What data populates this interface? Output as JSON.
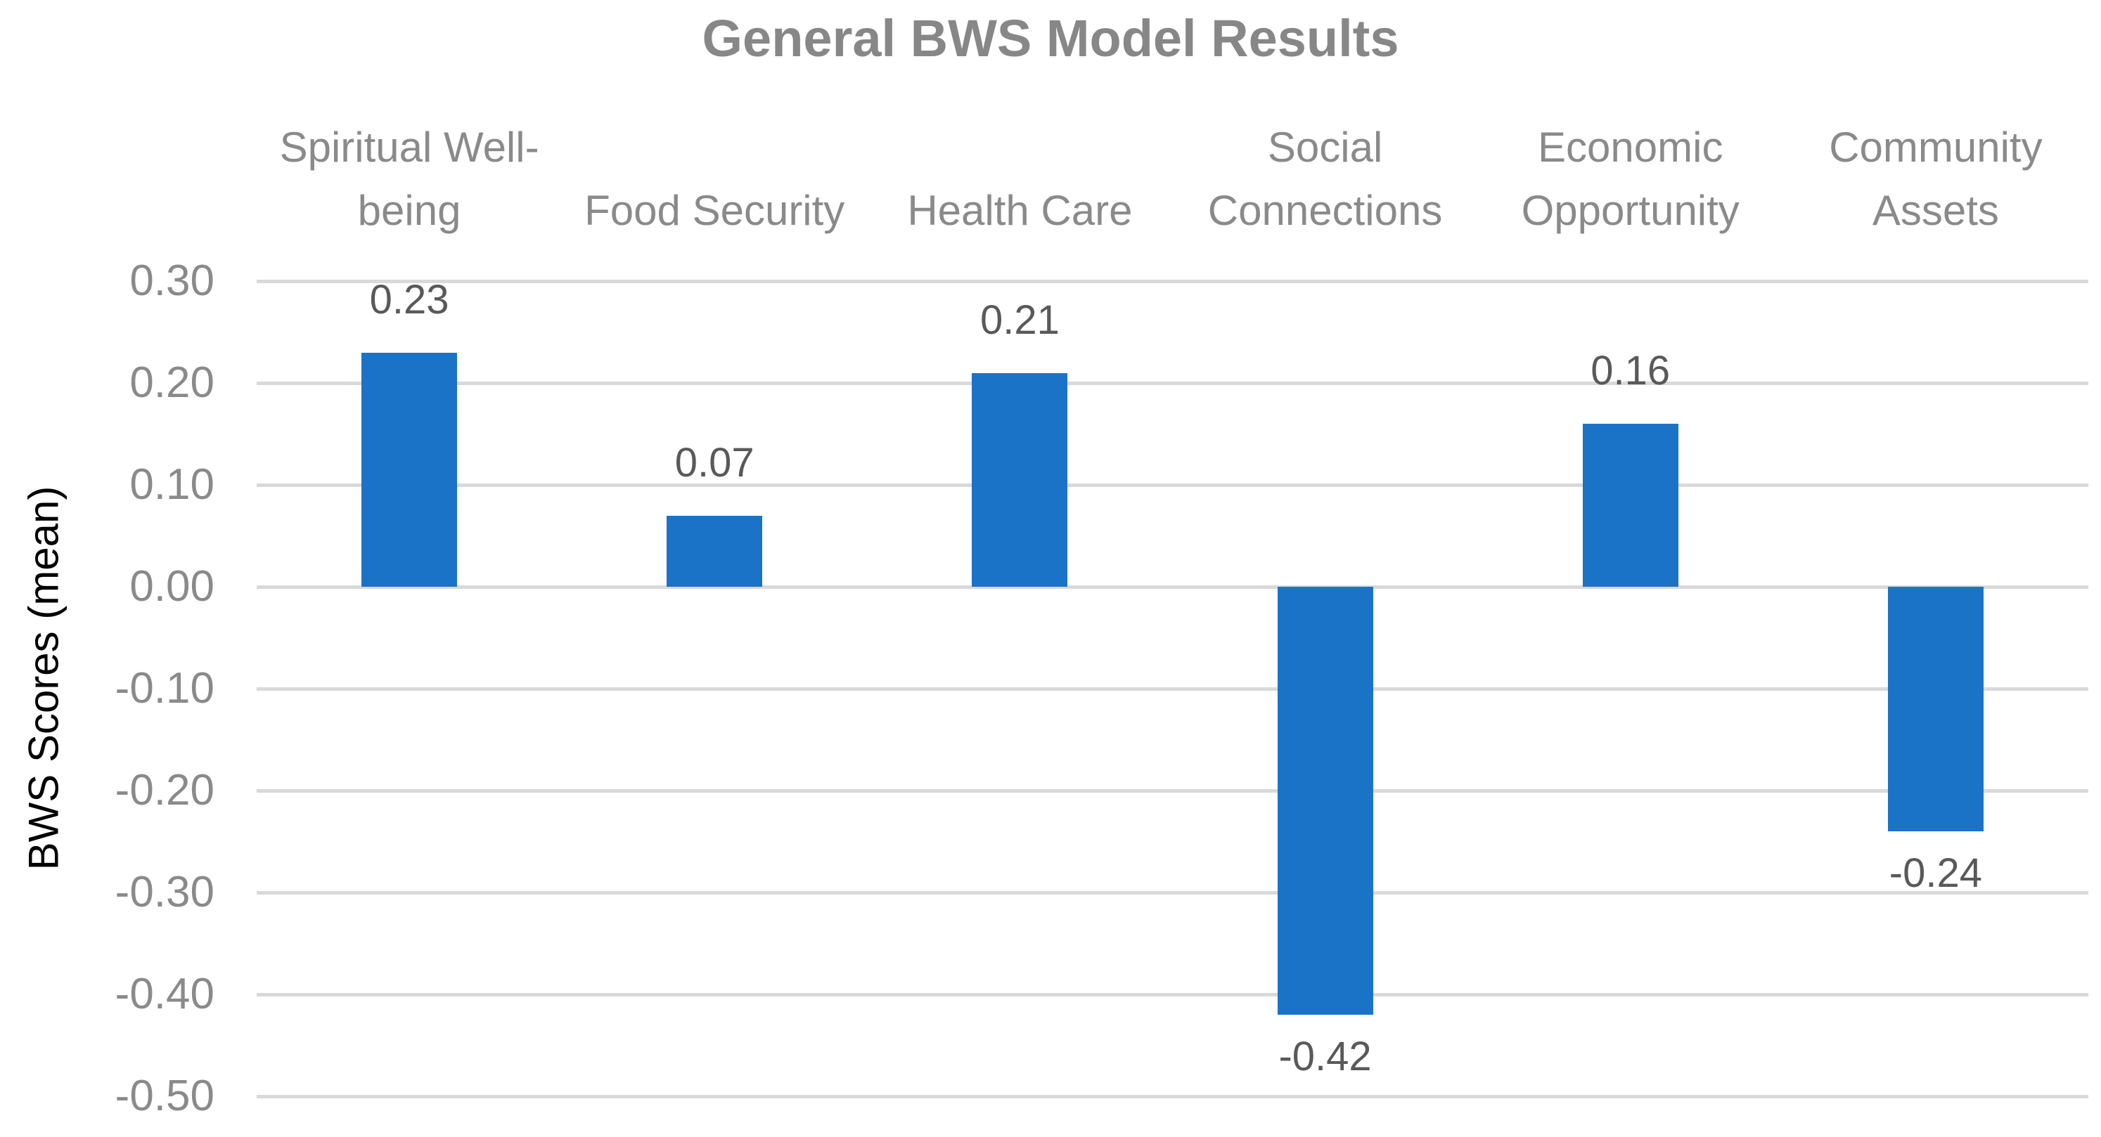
{
  "chart": {
    "colors": {
      "background": "#FFFFFF",
      "bar": "#1B73C8",
      "gridline": "#D9D9D9",
      "title_text": "#878787",
      "tick_text": "#8A8A8A",
      "category_text": "#8A8A8A",
      "value_label_text": "#595959",
      "axis_title_text": "#000000"
    }
  },
  "chart_data": {
    "type": "bar",
    "title": "General BWS Model Results",
    "xlabel": "",
    "ylabel": "BWS Scores (mean)",
    "categories": [
      "Spiritual Well-being",
      "Food Security",
      "Health Care",
      "Social Connections",
      "Economic Opportunity",
      "Community Assets"
    ],
    "values": [
      0.23,
      0.07,
      0.21,
      -0.42,
      0.16,
      -0.24
    ],
    "data_labels": [
      "0.23",
      "0.07",
      "0.21",
      "-0.42",
      "0.16",
      "-0.24"
    ],
    "ylim": [
      -0.5,
      0.3
    ],
    "ytick_step": 0.1,
    "ytick_labels": [
      "0.30",
      "0.20",
      "0.10",
      "0.00",
      "-0.10",
      "-0.20",
      "-0.30",
      "-0.40",
      "-0.50"
    ],
    "grid": "horizontal-only",
    "legend": "none",
    "bar_orientation": "vertical",
    "data_label_position": "outside-end"
  }
}
